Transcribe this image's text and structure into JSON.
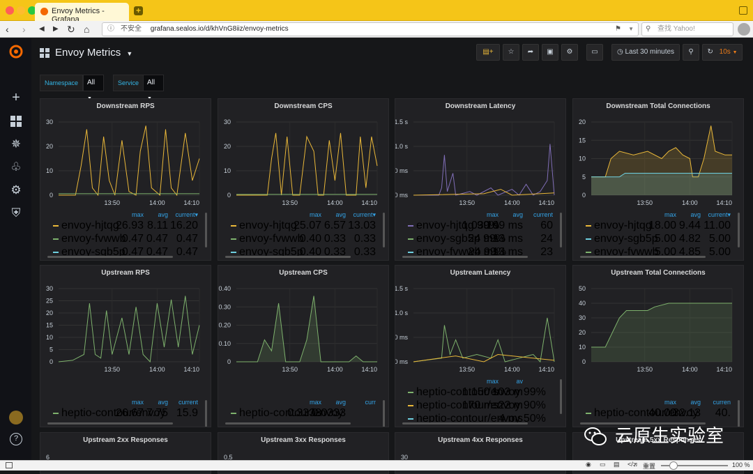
{
  "browser": {
    "tab_title": "Envoy Metrics - Grafana",
    "insecure_label": "不安全",
    "url": "grafana.sealos.io/d/khVnG8iiz/envoy-metrics",
    "search_placeholder": "查找 Yahoo!",
    "zoom_label": "重置",
    "zoom_value": "100 %"
  },
  "dashboard": {
    "title": "Envoy Metrics",
    "time_range": "Last 30 minutes",
    "refresh": "10s"
  },
  "variables": [
    {
      "label": "Namespace",
      "value": "All"
    },
    {
      "label": "Service",
      "value": "All"
    }
  ],
  "watermark": "云原生实验室",
  "colors": {
    "yellow": "#eab839",
    "green": "#7eb26d",
    "blue": "#6ed0e0",
    "purple": "#806eb7",
    "orange": "#ef843c"
  },
  "panels": [
    {
      "title": "Downstream RPS",
      "y_ticks": [
        "30",
        "20",
        "10",
        "0"
      ],
      "x_ticks": [
        "13:50",
        "14:00",
        "14:10"
      ],
      "headers": [
        "max",
        "avg",
        "current▾"
      ],
      "rows": [
        {
          "name": "envoy-hjtqg",
          "color": "#eab839",
          "values": [
            "26.93",
            "8.11",
            "16.20"
          ]
        },
        {
          "name": "envoy-fvwwb",
          "color": "#7eb26d",
          "values": [
            "0.47",
            "0.47",
            "0.47"
          ]
        },
        {
          "name": "envoy-sgb5p",
          "color": "#6ed0e0",
          "values": [
            "0.47",
            "0.47",
            "0.47"
          ]
        }
      ]
    },
    {
      "title": "Downstream CPS",
      "y_ticks": [
        "30",
        "20",
        "10",
        "0"
      ],
      "x_ticks": [
        "13:50",
        "14:00",
        "14:10"
      ],
      "headers": [
        "max",
        "avg",
        "current▾"
      ],
      "rows": [
        {
          "name": "envoy-hjtqg",
          "color": "#eab839",
          "values": [
            "25.07",
            "6.57",
            "13.03"
          ]
        },
        {
          "name": "envoy-fvwwb",
          "color": "#7eb26d",
          "values": [
            "0.40",
            "0.33",
            "0.33"
          ]
        },
        {
          "name": "envoy-sgb5p",
          "color": "#6ed0e0",
          "values": [
            "0.40",
            "0.33",
            "0.33"
          ]
        }
      ]
    },
    {
      "title": "Downstream Latency",
      "y_ticks": [
        "1.5 s",
        "1.0 s",
        "500 ms",
        "0 ms"
      ],
      "x_ticks": [
        "13:50",
        "14:00",
        "14:10"
      ],
      "headers": [
        "max",
        "avg",
        "current"
      ],
      "rows": [
        {
          "name": "envoy-hjtqg 99%",
          "color": "#806eb7",
          "values": [
            "1.030 s",
            "109 ms",
            "60"
          ]
        },
        {
          "name": "envoy-sgb5p 99%",
          "color": "#7eb26d",
          "values": [
            "24 ms",
            "13 ms",
            "24"
          ]
        },
        {
          "name": "envoy-fvwwb 99%",
          "color": "#6ed0e0",
          "values": [
            "24 ms",
            "13 ms",
            "23"
          ]
        }
      ]
    },
    {
      "title": "Downstream Total Connections",
      "y_ticks": [
        "20",
        "15",
        "10",
        "5",
        "0"
      ],
      "x_ticks": [
        "13:50",
        "14:00",
        "14:10"
      ],
      "headers": [
        "max",
        "avg",
        "current▾"
      ],
      "rows": [
        {
          "name": "envoy-hjtqg",
          "color": "#eab839",
          "values": [
            "18.00",
            "9.44",
            "11.00"
          ]
        },
        {
          "name": "envoy-sgb5p",
          "color": "#6ed0e0",
          "values": [
            "5.00",
            "4.82",
            "5.00"
          ]
        },
        {
          "name": "envoy-fvwwb",
          "color": "#7eb26d",
          "values": [
            "5.00",
            "4.85",
            "5.00"
          ]
        }
      ]
    },
    {
      "title": "Upstream RPS",
      "y_ticks": [
        "30",
        "25",
        "20",
        "15",
        "10",
        "5",
        "0"
      ],
      "x_ticks": [
        "13:50",
        "14:00",
        "14:10"
      ],
      "headers": [
        "max",
        "avg",
        "current"
      ],
      "rows": [
        {
          "name": "heptio-contour/envoy",
          "color": "#7eb26d",
          "values": [
            "26.67",
            "7.75",
            "15.9"
          ]
        }
      ]
    },
    {
      "title": "Upstream CPS",
      "y_ticks": [
        "0.40",
        "0.30",
        "0.20",
        "0.10",
        "0"
      ],
      "x_ticks": [
        "13:50",
        "14:00",
        "14:10"
      ],
      "headers": [
        "max",
        "avg",
        "curr"
      ],
      "rows": [
        {
          "name": "heptio-contour/envoy",
          "color": "#7eb26d",
          "values": [
            "0.3333",
            "0.0333",
            ""
          ]
        }
      ]
    },
    {
      "title": "Upstream Latency",
      "y_ticks": [
        "1.5 s",
        "1.0 s",
        "500 ms",
        "0 ms"
      ],
      "x_ticks": [
        "13:50",
        "14:00",
        "14:10"
      ],
      "headers": [
        "max",
        "av"
      ],
      "rows": [
        {
          "name": "heptio-contour/envoy 99%",
          "color": "#7eb26d",
          "values": [
            "1.150 s",
            "103 m"
          ]
        },
        {
          "name": "heptio-contour/envoy 90%",
          "color": "#eab839",
          "values": [
            "170 ms",
            "22 m"
          ]
        },
        {
          "name": "heptio-contour/envoy 50%",
          "color": "#6ed0e0",
          "values": [
            "",
            "4 ms"
          ]
        }
      ]
    },
    {
      "title": "Upstream Total Connections",
      "y_ticks": [
        "50",
        "40",
        "30",
        "20",
        "10",
        "0"
      ],
      "x_ticks": [
        "13:50",
        "14:00",
        "14:10"
      ],
      "headers": [
        "max",
        "avg",
        "curren"
      ],
      "rows": [
        {
          "name": "heptio-contour/envoy",
          "color": "#7eb26d",
          "values": [
            "40.00",
            "32.13",
            "40."
          ]
        }
      ]
    },
    {
      "title": "Upstream 2xx Responses",
      "y_ticks": [
        "6"
      ]
    },
    {
      "title": "Upstream 3xx Responses",
      "y_ticks": [
        "0.5"
      ]
    },
    {
      "title": "Upstream 4xx Responses",
      "y_ticks": [
        "30"
      ]
    },
    {
      "title": "Upstream 5xx Responses",
      "y_ticks": []
    }
  ]
}
